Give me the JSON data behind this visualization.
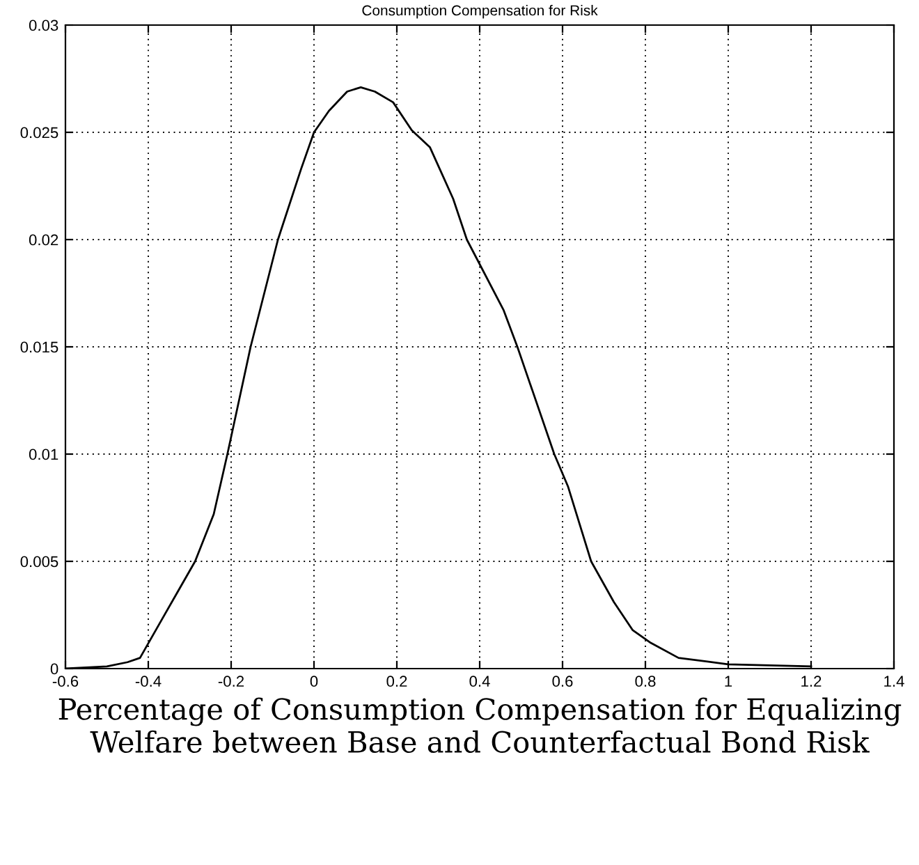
{
  "chart_data": {
    "type": "line",
    "title": "Consumption Compensation for Risk",
    "xlabel": "Percentage of Consumption Compensation for Equalizing Welfare between Base and Counterfactual Bond Risk",
    "series": [
      {
        "color": "#000000",
        "x": [
          -0.6,
          -0.5,
          -0.45,
          -0.42,
          -0.364,
          -0.287,
          -0.242,
          -0.209,
          -0.153,
          -0.087,
          -0.031,
          0.0,
          0.036,
          0.08,
          0.113,
          0.147,
          0.191,
          0.236,
          0.28,
          0.336,
          0.369,
          0.458,
          0.491,
          0.58,
          0.613,
          0.669,
          0.724,
          0.769,
          0.813,
          0.88,
          1.0,
          1.2
        ],
        "values": [
          0.0,
          0.0001,
          0.0003,
          0.0005,
          0.0024,
          0.005,
          0.0072,
          0.01,
          0.015,
          0.02,
          0.0233,
          0.025,
          0.026,
          0.0269,
          0.0271,
          0.0269,
          0.0264,
          0.0251,
          0.0243,
          0.0219,
          0.02,
          0.0167,
          0.015,
          0.01,
          0.0085,
          0.005,
          0.0031,
          0.0018,
          0.0012,
          0.0005,
          0.0002,
          0.0001
        ]
      }
    ],
    "xlim": [
      -0.6,
      1.4
    ],
    "xticks": [
      -0.6,
      -0.4,
      -0.2,
      0,
      0.2,
      0.4,
      0.6,
      0.8,
      1,
      1.2,
      1.4
    ],
    "ylim": [
      0,
      0.03
    ],
    "yticks": [
      0,
      0.005,
      0.01,
      0.015,
      0.02,
      0.025,
      0.03
    ],
    "grid": true,
    "line_style": "solid",
    "marker": "none"
  }
}
